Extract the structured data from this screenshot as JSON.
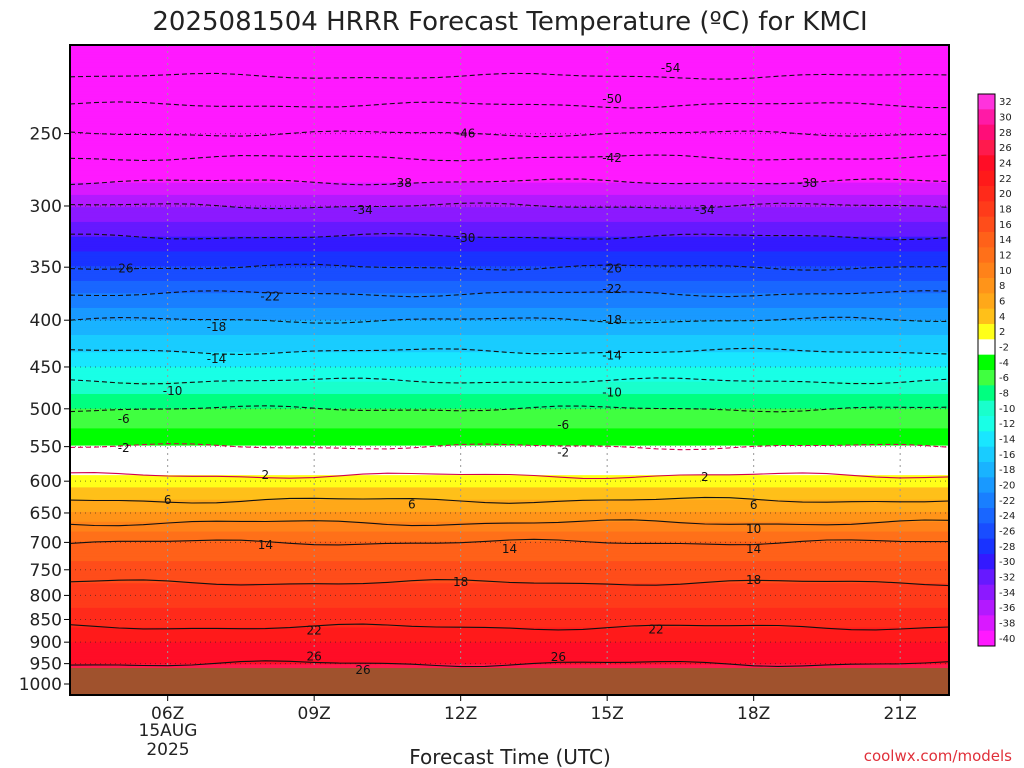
{
  "chart_data": {
    "type": "heatmap",
    "title": "2025081504 HRRR Forecast Temperature (ºC) for KMCI",
    "xlabel": "Forecast Time (UTC)",
    "ylabel": "",
    "credit": "coolwx.com/models",
    "x_ticks": [
      {
        "hour": 6,
        "label": "06Z"
      },
      {
        "hour": 9,
        "label": "09Z"
      },
      {
        "hour": 12,
        "label": "12Z"
      },
      {
        "hour": 15,
        "label": "15Z"
      },
      {
        "hour": 18,
        "label": "18Z"
      },
      {
        "hour": 21,
        "label": "21Z"
      }
    ],
    "x_date_label": [
      "15AUG",
      "2025"
    ],
    "xlim_hours": [
      4,
      22
    ],
    "y_axis": "pressure (hPa), log scale, inverted",
    "ylim_hpa": [
      1000,
      200
    ],
    "y_ticks": [
      250,
      300,
      350,
      400,
      450,
      500,
      550,
      600,
      650,
      700,
      750,
      800,
      850,
      900,
      950,
      1000
    ],
    "colorbar_levels": [
      32,
      30,
      28,
      26,
      24,
      22,
      20,
      18,
      16,
      14,
      12,
      10,
      8,
      6,
      4,
      2,
      -2,
      -4,
      -6,
      -8,
      -10,
      -12,
      -14,
      -16,
      -18,
      -20,
      -22,
      -24,
      -26,
      -28,
      -30,
      -32,
      -34,
      -36,
      -38,
      -40
    ],
    "colorbar_colors": [
      "#ff33dd",
      "#ff1aa6",
      "#ff0d78",
      "#ff1a4d",
      "#ff0d26",
      "#ff1a1a",
      "#ff2a1a",
      "#ff3b1a",
      "#ff4d1a",
      "#ff6119",
      "#ff7019",
      "#ff8219",
      "#ff9419",
      "#ffa819",
      "#ffc019",
      "#ffff19",
      "#ffffff",
      "#00ff00",
      "#40ff40",
      "#00ff80",
      "#19ffcc",
      "#19ffe6",
      "#19e6ff",
      "#19ccff",
      "#19b3ff",
      "#1999ff",
      "#197fff",
      "#1966ff",
      "#194dff",
      "#1933ff",
      "#3319ff",
      "#6619ff",
      "#8c19ff",
      "#b319ff",
      "#d919ff",
      "#ff19ff"
    ],
    "ground_color": "#a0522d",
    "isotherm_profile": [
      {
        "p": 205,
        "t": -57
      },
      {
        "p": 250,
        "t": -46
      },
      {
        "p": 300,
        "t": -34
      },
      {
        "p": 350,
        "t": -26
      },
      {
        "p": 400,
        "t": -18
      },
      {
        "p": 450,
        "t": -12
      },
      {
        "p": 500,
        "t": -6
      },
      {
        "p": 550,
        "t": -2
      },
      {
        "p": 575,
        "t": 0
      },
      {
        "p": 600,
        "t": 3
      },
      {
        "p": 650,
        "t": 8
      },
      {
        "p": 700,
        "t": 14
      },
      {
        "p": 750,
        "t": 17
      },
      {
        "p": 800,
        "t": 19
      },
      {
        "p": 850,
        "t": 21
      },
      {
        "p": 900,
        "t": 24
      },
      {
        "p": 950,
        "t": 26
      },
      {
        "p": 1000,
        "t": 29
      }
    ],
    "contour_labels": [
      {
        "value": "-54",
        "hour": 16.3,
        "p": 212
      },
      {
        "value": "-50",
        "hour": 15.1,
        "p": 229
      },
      {
        "value": "-46",
        "hour": 12.1,
        "p": 250
      },
      {
        "value": "-42",
        "hour": 15.1,
        "p": 266
      },
      {
        "value": "-38",
        "hour": 10.8,
        "p": 283
      },
      {
        "value": "-38",
        "hour": 19.1,
        "p": 283
      },
      {
        "value": "-34",
        "hour": 10.0,
        "p": 303
      },
      {
        "value": "-34",
        "hour": 17.0,
        "p": 303
      },
      {
        "value": "-30",
        "hour": 12.1,
        "p": 325
      },
      {
        "value": "-26",
        "hour": 5.1,
        "p": 351
      },
      {
        "value": "-26",
        "hour": 15.1,
        "p": 351
      },
      {
        "value": "-22",
        "hour": 8.1,
        "p": 377
      },
      {
        "value": "-22",
        "hour": 15.1,
        "p": 370
      },
      {
        "value": "-18",
        "hour": 7.0,
        "p": 407
      },
      {
        "value": "-18",
        "hour": 15.1,
        "p": 400
      },
      {
        "value": "-14",
        "hour": 7.0,
        "p": 441
      },
      {
        "value": "-14",
        "hour": 15.1,
        "p": 437
      },
      {
        "value": "-10",
        "hour": 6.1,
        "p": 478
      },
      {
        "value": "-10",
        "hour": 15.1,
        "p": 480
      },
      {
        "value": "-6",
        "hour": 5.1,
        "p": 513
      },
      {
        "value": "-6",
        "hour": 14.1,
        "p": 521
      },
      {
        "value": "-2",
        "hour": 5.1,
        "p": 552
      },
      {
        "value": "-2",
        "hour": 14.1,
        "p": 558
      },
      {
        "value": "2",
        "hour": 8.0,
        "p": 591
      },
      {
        "value": "2",
        "hour": 17.0,
        "p": 594
      },
      {
        "value": "6",
        "hour": 6.0,
        "p": 629
      },
      {
        "value": "6",
        "hour": 11.0,
        "p": 636
      },
      {
        "value": "6",
        "hour": 18.0,
        "p": 637
      },
      {
        "value": "10",
        "hour": 18.0,
        "p": 677
      },
      {
        "value": "14",
        "hour": 8.0,
        "p": 705
      },
      {
        "value": "14",
        "hour": 13.0,
        "p": 712
      },
      {
        "value": "14",
        "hour": 18.0,
        "p": 712
      },
      {
        "value": "18",
        "hour": 12.0,
        "p": 773
      },
      {
        "value": "18",
        "hour": 18.0,
        "p": 770
      },
      {
        "value": "22",
        "hour": 9.0,
        "p": 874
      },
      {
        "value": "22",
        "hour": 16.0,
        "p": 872
      },
      {
        "value": "26",
        "hour": 9.0,
        "p": 933
      },
      {
        "value": "26",
        "hour": 14.0,
        "p": 934
      },
      {
        "value": "26",
        "hour": 10.0,
        "p": 965
      }
    ],
    "grid": true,
    "legend": "right colorbar"
  }
}
